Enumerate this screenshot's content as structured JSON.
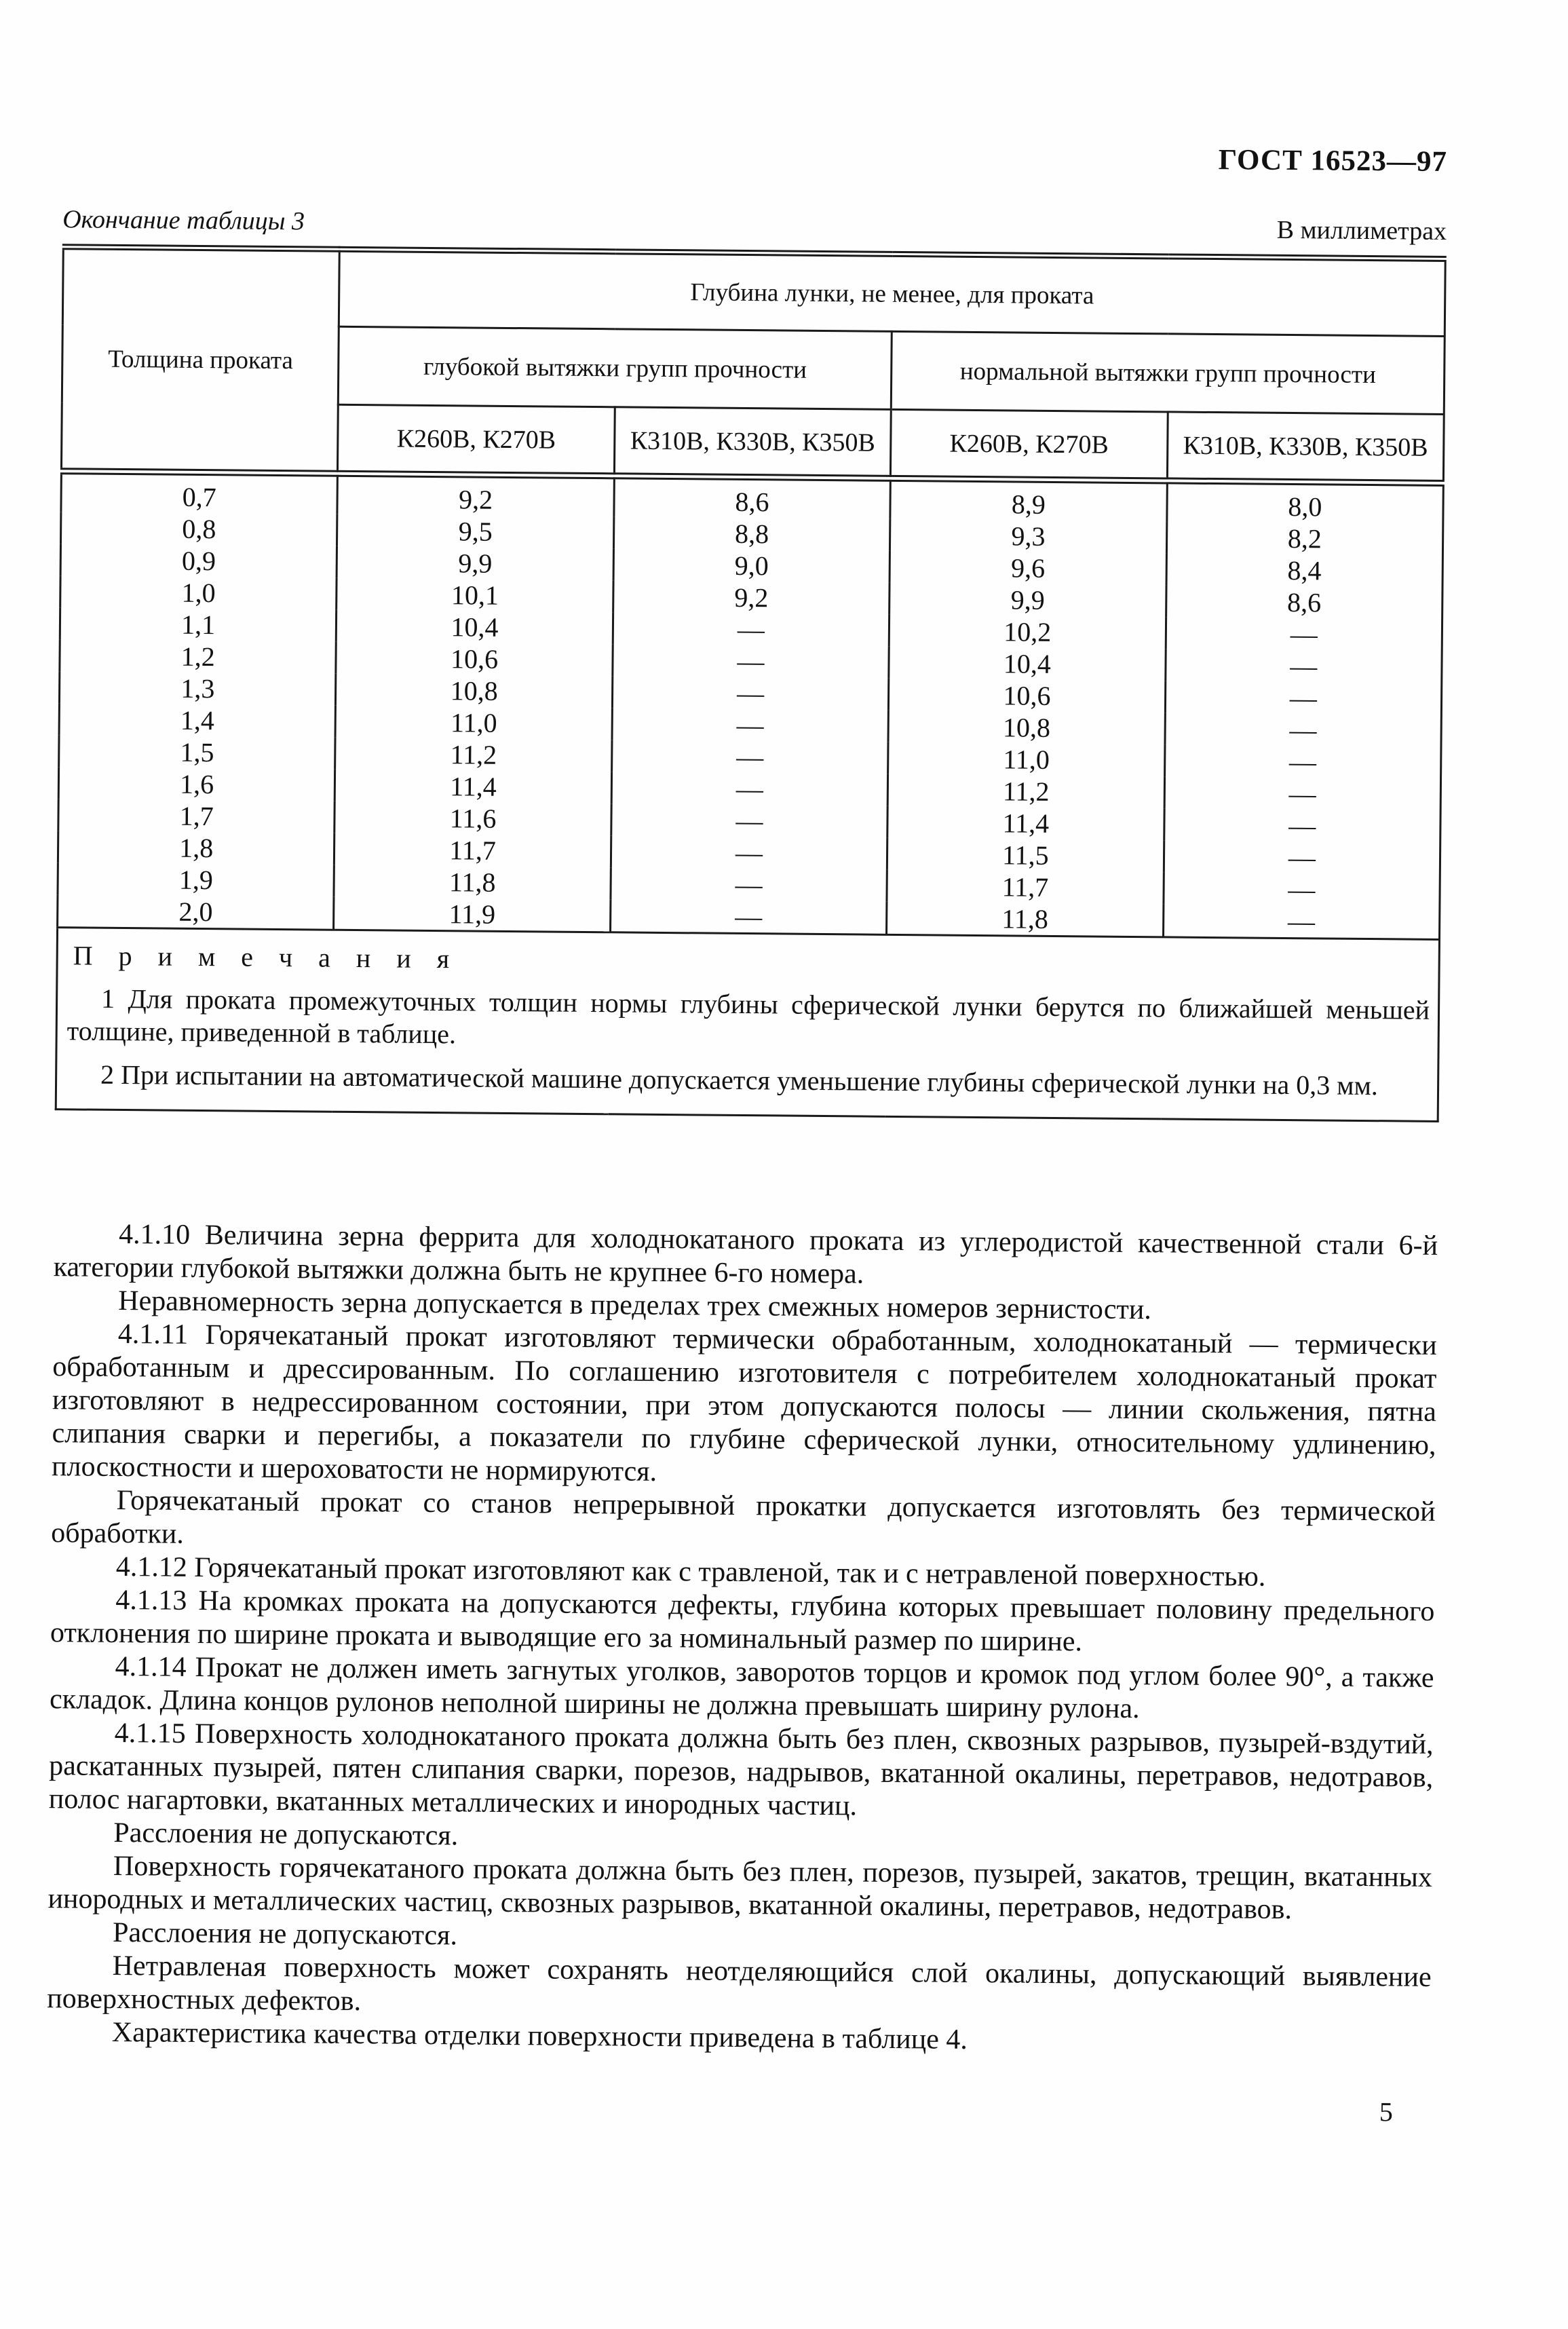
{
  "page": {
    "standard_number": "ГОСТ 16523—97",
    "table_caption": "Окончание таблицы 3",
    "units_label": "В миллиметрах",
    "page_number": "5"
  },
  "table": {
    "columns": {
      "thickness": "Толщина проката",
      "depth_span": "Глубина лунки, не менее, для проката",
      "groups": [
        "глубокой вытяжки групп прочности",
        "нормальной вытяжки групп  прочности"
      ],
      "strength": [
        "К260В, К270В",
        "К310В, К330В, К350В",
        "К260В, К270В",
        "К310В, К330В, К350В"
      ]
    },
    "rows": [
      [
        "0,7",
        "9,2",
        "8,6",
        "8,9",
        "8,0"
      ],
      [
        "0,8",
        "9,5",
        "8,8",
        "9,3",
        "8,2"
      ],
      [
        "0,9",
        "9,9",
        "9,0",
        "9,6",
        "8,4"
      ],
      [
        "1,0",
        "10,1",
        "9,2",
        "9,9",
        "8,6"
      ],
      [
        "1,1",
        "10,4",
        "—",
        "10,2",
        "—"
      ],
      [
        "1,2",
        "10,6",
        "—",
        "10,4",
        "—"
      ],
      [
        "1,3",
        "10,8",
        "—",
        "10,6",
        "—"
      ],
      [
        "1,4",
        "11,0",
        "—",
        "10,8",
        "—"
      ],
      [
        "1,5",
        "11,2",
        "—",
        "11,0",
        "—"
      ],
      [
        "1,6",
        "11,4",
        "—",
        "11,2",
        "—"
      ],
      [
        "1,7",
        "11,6",
        "—",
        "11,4",
        "—"
      ],
      [
        "1,8",
        "11,7",
        "—",
        "11,5",
        "—"
      ],
      [
        "1,9",
        "11,8",
        "—",
        "11,7",
        "—"
      ],
      [
        "2,0",
        "11,9",
        "—",
        "11,8",
        "—"
      ]
    ],
    "notes_title": "П р и м е ч а н и я",
    "notes": [
      "1 Для проката промежуточных толщин нормы глубины сферической лунки берутся по ближайшей меньшей толщине, приведенной в таблице.",
      "2 При испытании на автоматической машине допускается уменьшение глубины сферической лунки на 0,3 мм."
    ]
  },
  "body": {
    "paragraphs": [
      "4.1.10 Величина зерна феррита для холоднокатаного проката из углеродистой качественной стали 6-й категории глубокой вытяжки должна быть не крупнее 6-го номера.",
      "Неравномерность зерна допускается в пределах трех смежных номеров зернистости.",
      "4.1.11 Горячекатаный прокат изготовляют термически обработанным, холоднокатаный — термически обработанным и дрессированным. По соглашению изготовителя с потребителем холоднокатаный прокат изготовляют в недрессированном состоянии, при этом допускаются полосы — линии скольжения, пятна слипания сварки и перегибы, а показатели по глубине сферической лунки, относительному удлинению, плоскостности и шероховатости не нормируются.",
      "Горячекатаный прокат со станов непрерывной прокатки допускается изготовлять без термической обработки.",
      "4.1.12 Горячекатаный прокат изготовляют как с травленой, так и с нетравленой поверхностью.",
      "4.1.13 На кромках проката на допускаются дефекты, глубина которых превышает половину предельного отклонения по ширине проката и выводящие его за номинальный размер по ширине.",
      "4.1.14 Прокат не должен иметь загнутых уголков, заворотов торцов и кромок под углом более 90°, а также складок. Длина концов рулонов неполной ширины не должна превышать ширину рулона.",
      "4.1.15 Поверхность холоднокатаного проката должна быть без плен, сквозных разрывов, пузырей-вздутий, раскатанных пузырей, пятен слипания сварки, порезов, надрывов, вкатанной окалины, перетравов, недотравов, полос нагартовки, вкатанных металлических и инородных частиц.",
      "Расслоения не допускаются.",
      "Поверхность горячекатаного проката должна быть без плен, порезов, пузырей, закатов, трещин, вкатанных инородных и металлических частиц, сквозных разрывов, вкатанной окалины, перетравов, недотравов.",
      "Расслоения не допускаются.",
      "Нетравленая поверхность может сохранять неотделяющийся слой окалины, допускающий выявление поверхностных дефектов.",
      "Характеристика качества отделки поверхности приведена в таблице 4."
    ]
  }
}
